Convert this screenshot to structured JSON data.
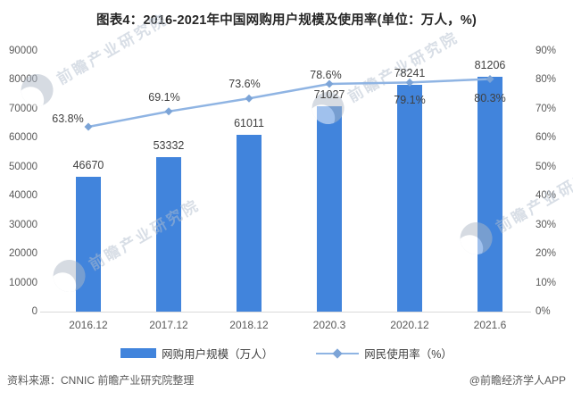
{
  "title": "图表4：2016-2021年中国网购用户规模及使用率(单位：万人，%)",
  "chart_data": {
    "type": "bar",
    "subtype": "combo-bar-line-dual-axis",
    "categories": [
      "2016.12",
      "2017.12",
      "2018.12",
      "2020.3",
      "2020.12",
      "2021.6"
    ],
    "series": [
      {
        "name": "网购用户规模（万人）",
        "type": "bar",
        "axis": "left",
        "values": [
          46670,
          53332,
          61011,
          71027,
          78241,
          81206
        ],
        "data_labels": [
          "46670",
          "53332",
          "61011",
          "71027",
          "78241",
          "81206"
        ],
        "color": "#4184DC"
      },
      {
        "name": "网民使用率（%）",
        "type": "line",
        "axis": "right",
        "values": [
          63.8,
          69.1,
          73.6,
          78.6,
          79.1,
          80.3
        ],
        "data_labels": [
          "63.8%",
          "69.1%",
          "73.6%",
          "78.6%",
          "79.1%",
          "80.3%"
        ],
        "label_positions": [
          "above",
          "above",
          "above",
          "above",
          "below",
          "below"
        ],
        "color": "#8FB4E3",
        "marker": "diamond",
        "marker_color": "#7CA4D7"
      }
    ],
    "left_axis": {
      "min": 0,
      "max": 90000,
      "step": 10000,
      "suffix": ""
    },
    "right_axis": {
      "min": 0,
      "max": 90,
      "step": 10,
      "suffix": "%"
    },
    "grid": false,
    "legend_position": "bottom"
  },
  "legend": {
    "bar_label": "网购用户规模（万人）",
    "line_label": "网民使用率（%）"
  },
  "footer": {
    "source": "资料来源：CNNIC 前瞻产业研究院整理",
    "credit": "@前瞻经济学人APP"
  },
  "watermark": {
    "text": "前瞻产业研究院"
  },
  "colors": {
    "bar": "#4184DC",
    "line": "#8FB4E3",
    "marker": "#7CA4D7",
    "title_text": "#262626",
    "axis_text": "#595959",
    "data_label_text": "#404040",
    "axis_line": "#d9d9d9",
    "watermark_text": "#b3bfce"
  }
}
